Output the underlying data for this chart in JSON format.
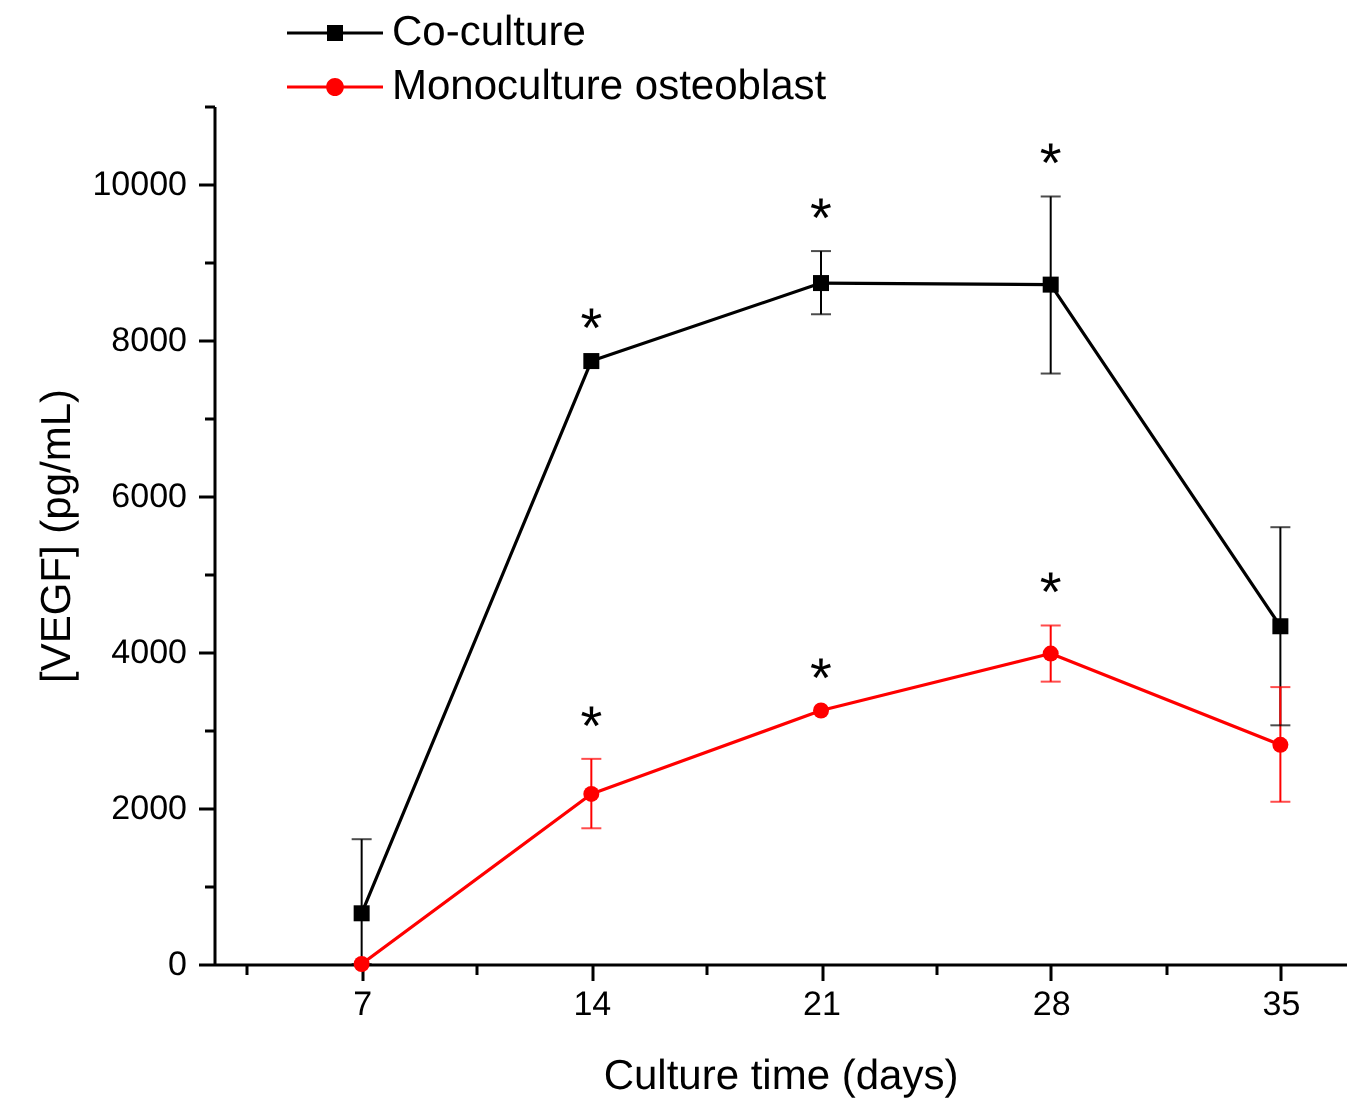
{
  "chart_data": {
    "type": "line",
    "xlabel": "Culture time (days)",
    "ylabel": "[VEGF] (pg/mL)",
    "x": [
      7,
      14,
      21,
      28,
      35
    ],
    "xlim": [
      2.5,
      37
    ],
    "xticks": [
      {
        "value": 3.5,
        "label": null
      },
      7,
      {
        "value": 10.5,
        "label": null
      },
      14,
      {
        "value": 17.5,
        "label": null
      },
      21,
      {
        "value": 24.5,
        "label": null
      },
      28,
      {
        "value": 31.5,
        "label": null
      },
      35
    ],
    "ylim": [
      0,
      11000
    ],
    "yticks": [
      0,
      {
        "value": 1000,
        "label": null
      },
      2000,
      {
        "value": 3000,
        "label": null
      },
      4000,
      {
        "value": 5000,
        "label": null
      },
      6000,
      {
        "value": 7000,
        "label": null
      },
      8000,
      {
        "value": 9000,
        "label": null
      },
      10000,
      {
        "value": 11000,
        "label": null
      }
    ],
    "series": [
      {
        "name": "Co-culture",
        "color": "#000000",
        "marker": "square",
        "values": [
          650,
          7730,
          8730,
          8710,
          4330
        ],
        "errors": [
          [
            0,
            1600
          ],
          null,
          [
            8330,
            9140
          ],
          [
            7570,
            9840
          ],
          [
            3060,
            5600
          ]
        ]
      },
      {
        "name": "Monoculture osteoblast",
        "color": "#ff0000",
        "marker": "circle",
        "values": [
          0,
          2180,
          3250,
          3980,
          2810
        ],
        "errors": [
          null,
          [
            1740,
            2630
          ],
          null,
          [
            3620,
            4340
          ],
          [
            2080,
            3550
          ]
        ]
      }
    ],
    "legend": "top left",
    "line_style": "solid",
    "annotations": [
      {
        "text": "*",
        "x": 14,
        "y": 7730
      },
      {
        "text": "*",
        "x": 21,
        "y": 9140
      },
      {
        "text": "*",
        "x": 28,
        "y": 9840
      },
      {
        "text": "*",
        "x": 14,
        "y": 2630
      },
      {
        "text": "*",
        "x": 21,
        "y": 3250
      },
      {
        "text": "*",
        "x": 28,
        "y": 4340
      }
    ]
  }
}
